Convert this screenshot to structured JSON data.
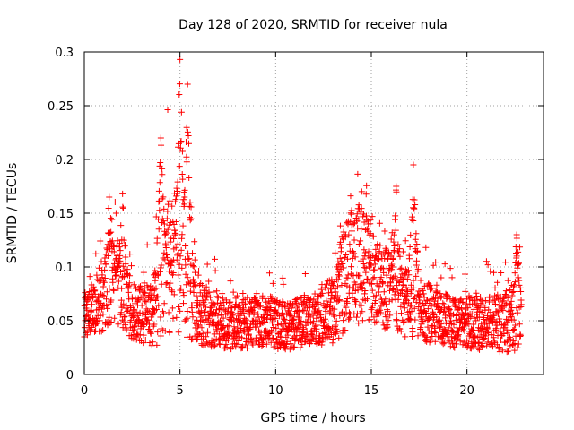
{
  "chart_data": {
    "type": "scatter",
    "marker": "+",
    "title": "Day 128 of 2020, SRMTID for receiver nula",
    "xlabel": "GPS time / hours",
    "ylabel": "SRMTID / TECUs",
    "xlim": [
      0,
      24
    ],
    "ylim": [
      0,
      0.3
    ],
    "x_ticks": [
      0,
      5,
      10,
      15,
      20
    ],
    "x_tick_labels": [
      "0",
      "5",
      "10",
      "15",
      "20"
    ],
    "y_ticks": [
      0,
      0.05,
      0.1,
      0.15,
      0.2,
      0.25,
      0.3
    ],
    "y_tick_labels": [
      "0",
      "0.05",
      "0.1",
      "0.15",
      "0.2",
      "0.25",
      "0.3"
    ],
    "grid": true,
    "series_color": "#ff0000",
    "series": [
      {
        "name": "SRMTID",
        "x_start": 0.0,
        "x_step": 0.01,
        "baseline": [
          0.055,
          0.063,
          0.075,
          0.09,
          0.08,
          0.06,
          0.058,
          0.055,
          0.085,
          0.11,
          0.085,
          0.07,
          0.06,
          0.052,
          0.05,
          0.047,
          0.045,
          0.048,
          0.05,
          0.05,
          0.048,
          0.045,
          0.047,
          0.05,
          0.052,
          0.055,
          0.06,
          0.085,
          0.1,
          0.105,
          0.095,
          0.085,
          0.075,
          0.068,
          0.065,
          0.06,
          0.058,
          0.055,
          0.05,
          0.048,
          0.048,
          0.05,
          0.048,
          0.048,
          0.048,
          0.05,
          0.05,
          0.052,
          0.055
        ],
        "spread": [
          0.025,
          0.03,
          0.045,
          0.05,
          0.045,
          0.035,
          0.035,
          0.04,
          0.07,
          0.09,
          0.07,
          0.05,
          0.04,
          0.035,
          0.03,
          0.03,
          0.028,
          0.03,
          0.03,
          0.03,
          0.03,
          0.028,
          0.03,
          0.03,
          0.03,
          0.035,
          0.04,
          0.06,
          0.07,
          0.07,
          0.06,
          0.05,
          0.045,
          0.04,
          0.04,
          0.035,
          0.035,
          0.035,
          0.03,
          0.03,
          0.03,
          0.035,
          0.03,
          0.035,
          0.035,
          0.035,
          0.04,
          0.045,
          0.05
        ],
        "peaks": [
          {
            "x": 1.3,
            "y": 0.165
          },
          {
            "x": 2.0,
            "y": 0.168
          },
          {
            "x": 4.0,
            "y": 0.22
          },
          {
            "x": 5.0,
            "y": 0.293
          },
          {
            "x": 5.4,
            "y": 0.27
          },
          {
            "x": 16.3,
            "y": 0.175
          },
          {
            "x": 17.2,
            "y": 0.195
          },
          {
            "x": 22.6,
            "y": 0.13
          }
        ]
      }
    ]
  }
}
